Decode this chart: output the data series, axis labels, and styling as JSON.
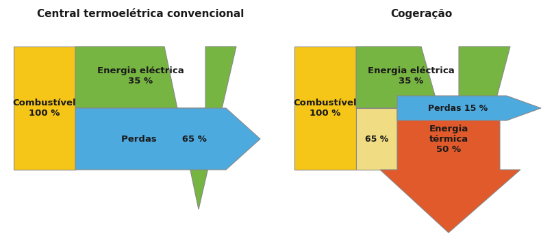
{
  "title_left": "Central termoelétrica convencional",
  "title_right": "Cogeração",
  "color_yellow": "#F5C518",
  "color_yellow_light": "#F0DC82",
  "color_green": "#77B542",
  "color_blue": "#4DAADF",
  "color_red": "#E05A2B",
  "color_text": "#1A1A1A",
  "bg_color": "#FFFFFF",
  "edge_color": "#888888",
  "left_labels": {
    "combustivel": "Combustível\n100 %",
    "energia_electrica": "Energia eléctrica\n35 %",
    "perdas": "Perdas        65 %"
  },
  "right_labels": {
    "combustivel": "Combustível\n100 %",
    "energia_electrica": "Energia eléctrica\n35 %",
    "perdas": "Perdas 15 %",
    "energia_termica": "Energia\ntérmica\n50 %",
    "pct65": "65 %"
  }
}
